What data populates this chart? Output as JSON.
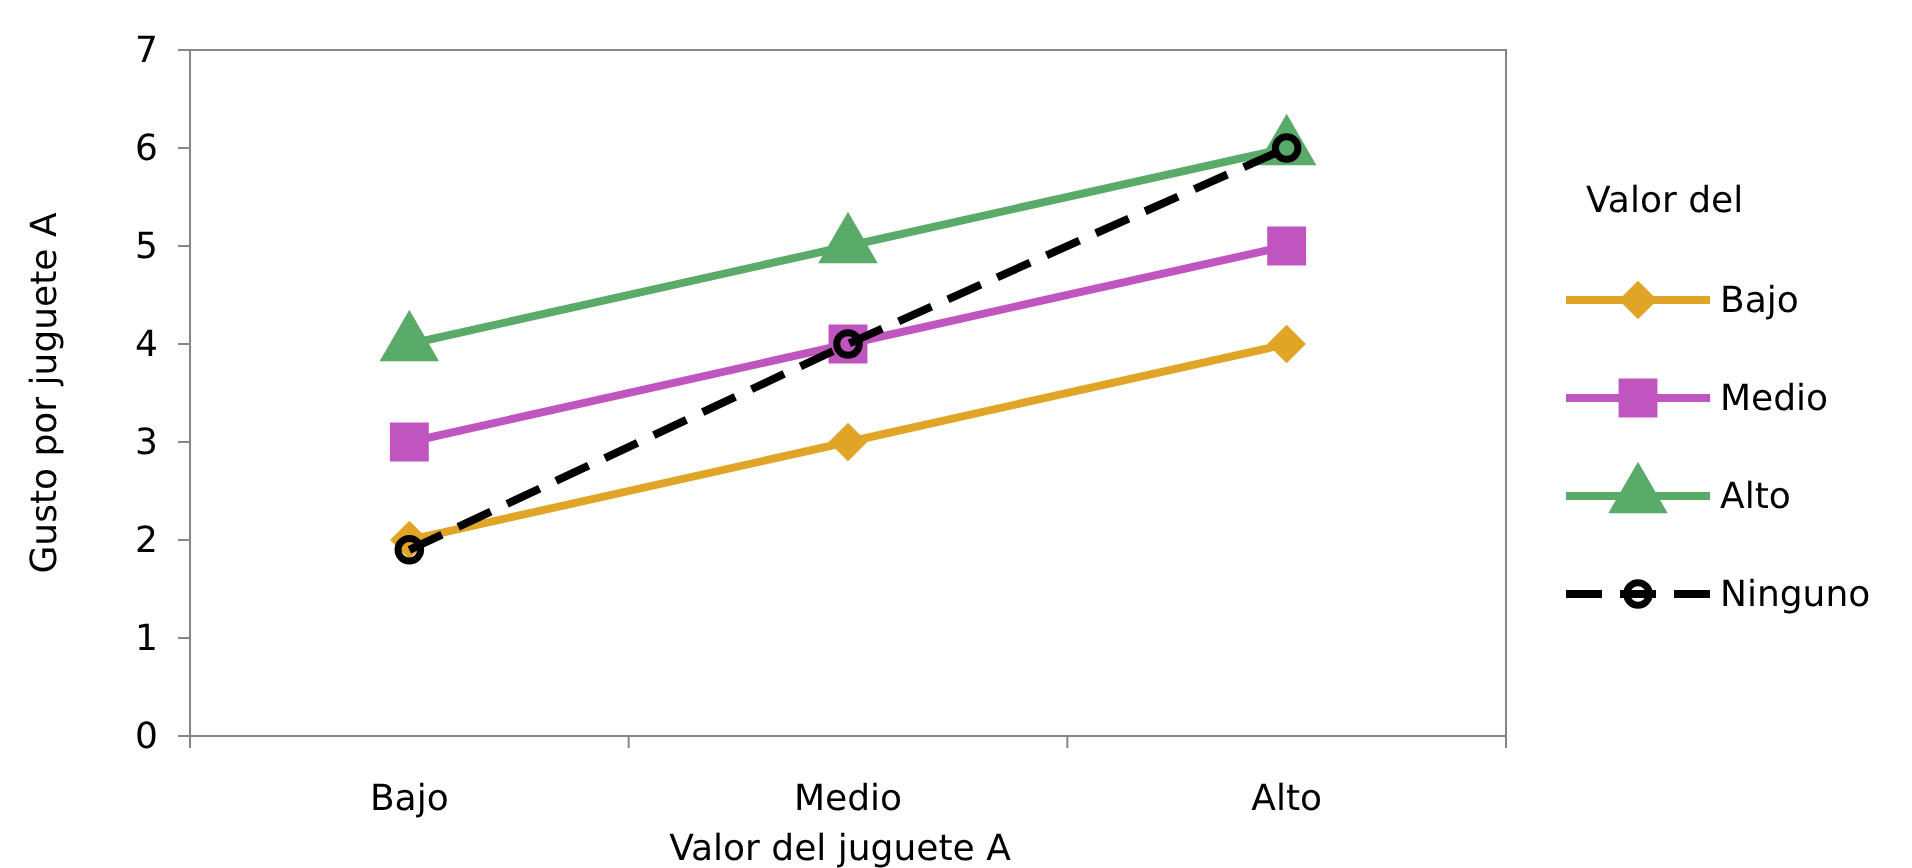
{
  "chart_data": {
    "type": "line",
    "xlabel": "Valor del juguete A",
    "ylabel": "Gusto por juguete A",
    "legend_title": "Valor del",
    "categories": [
      "Bajo",
      "Medio",
      "Alto"
    ],
    "series": [
      {
        "name": "Bajo",
        "color": "#e0a526",
        "values": [
          2,
          3,
          4
        ],
        "marker": "diamond",
        "line_style": "solid"
      },
      {
        "name": "Medio",
        "color": "#c155bf",
        "values": [
          3,
          4,
          5
        ],
        "marker": "square",
        "line_style": "solid"
      },
      {
        "name": "Alto",
        "color": "#5aaa6a",
        "values": [
          4,
          5,
          6
        ],
        "marker": "triangle",
        "line_style": "solid"
      },
      {
        "name": "Ninguno",
        "color": "#000000",
        "values": [
          1.9,
          4,
          6
        ],
        "marker": "circle",
        "line_style": "dashed"
      }
    ],
    "ylim": [
      0,
      7
    ],
    "yticks": [
      0,
      1,
      2,
      3,
      4,
      5,
      6,
      7
    ],
    "grid": false,
    "legend": "right"
  }
}
